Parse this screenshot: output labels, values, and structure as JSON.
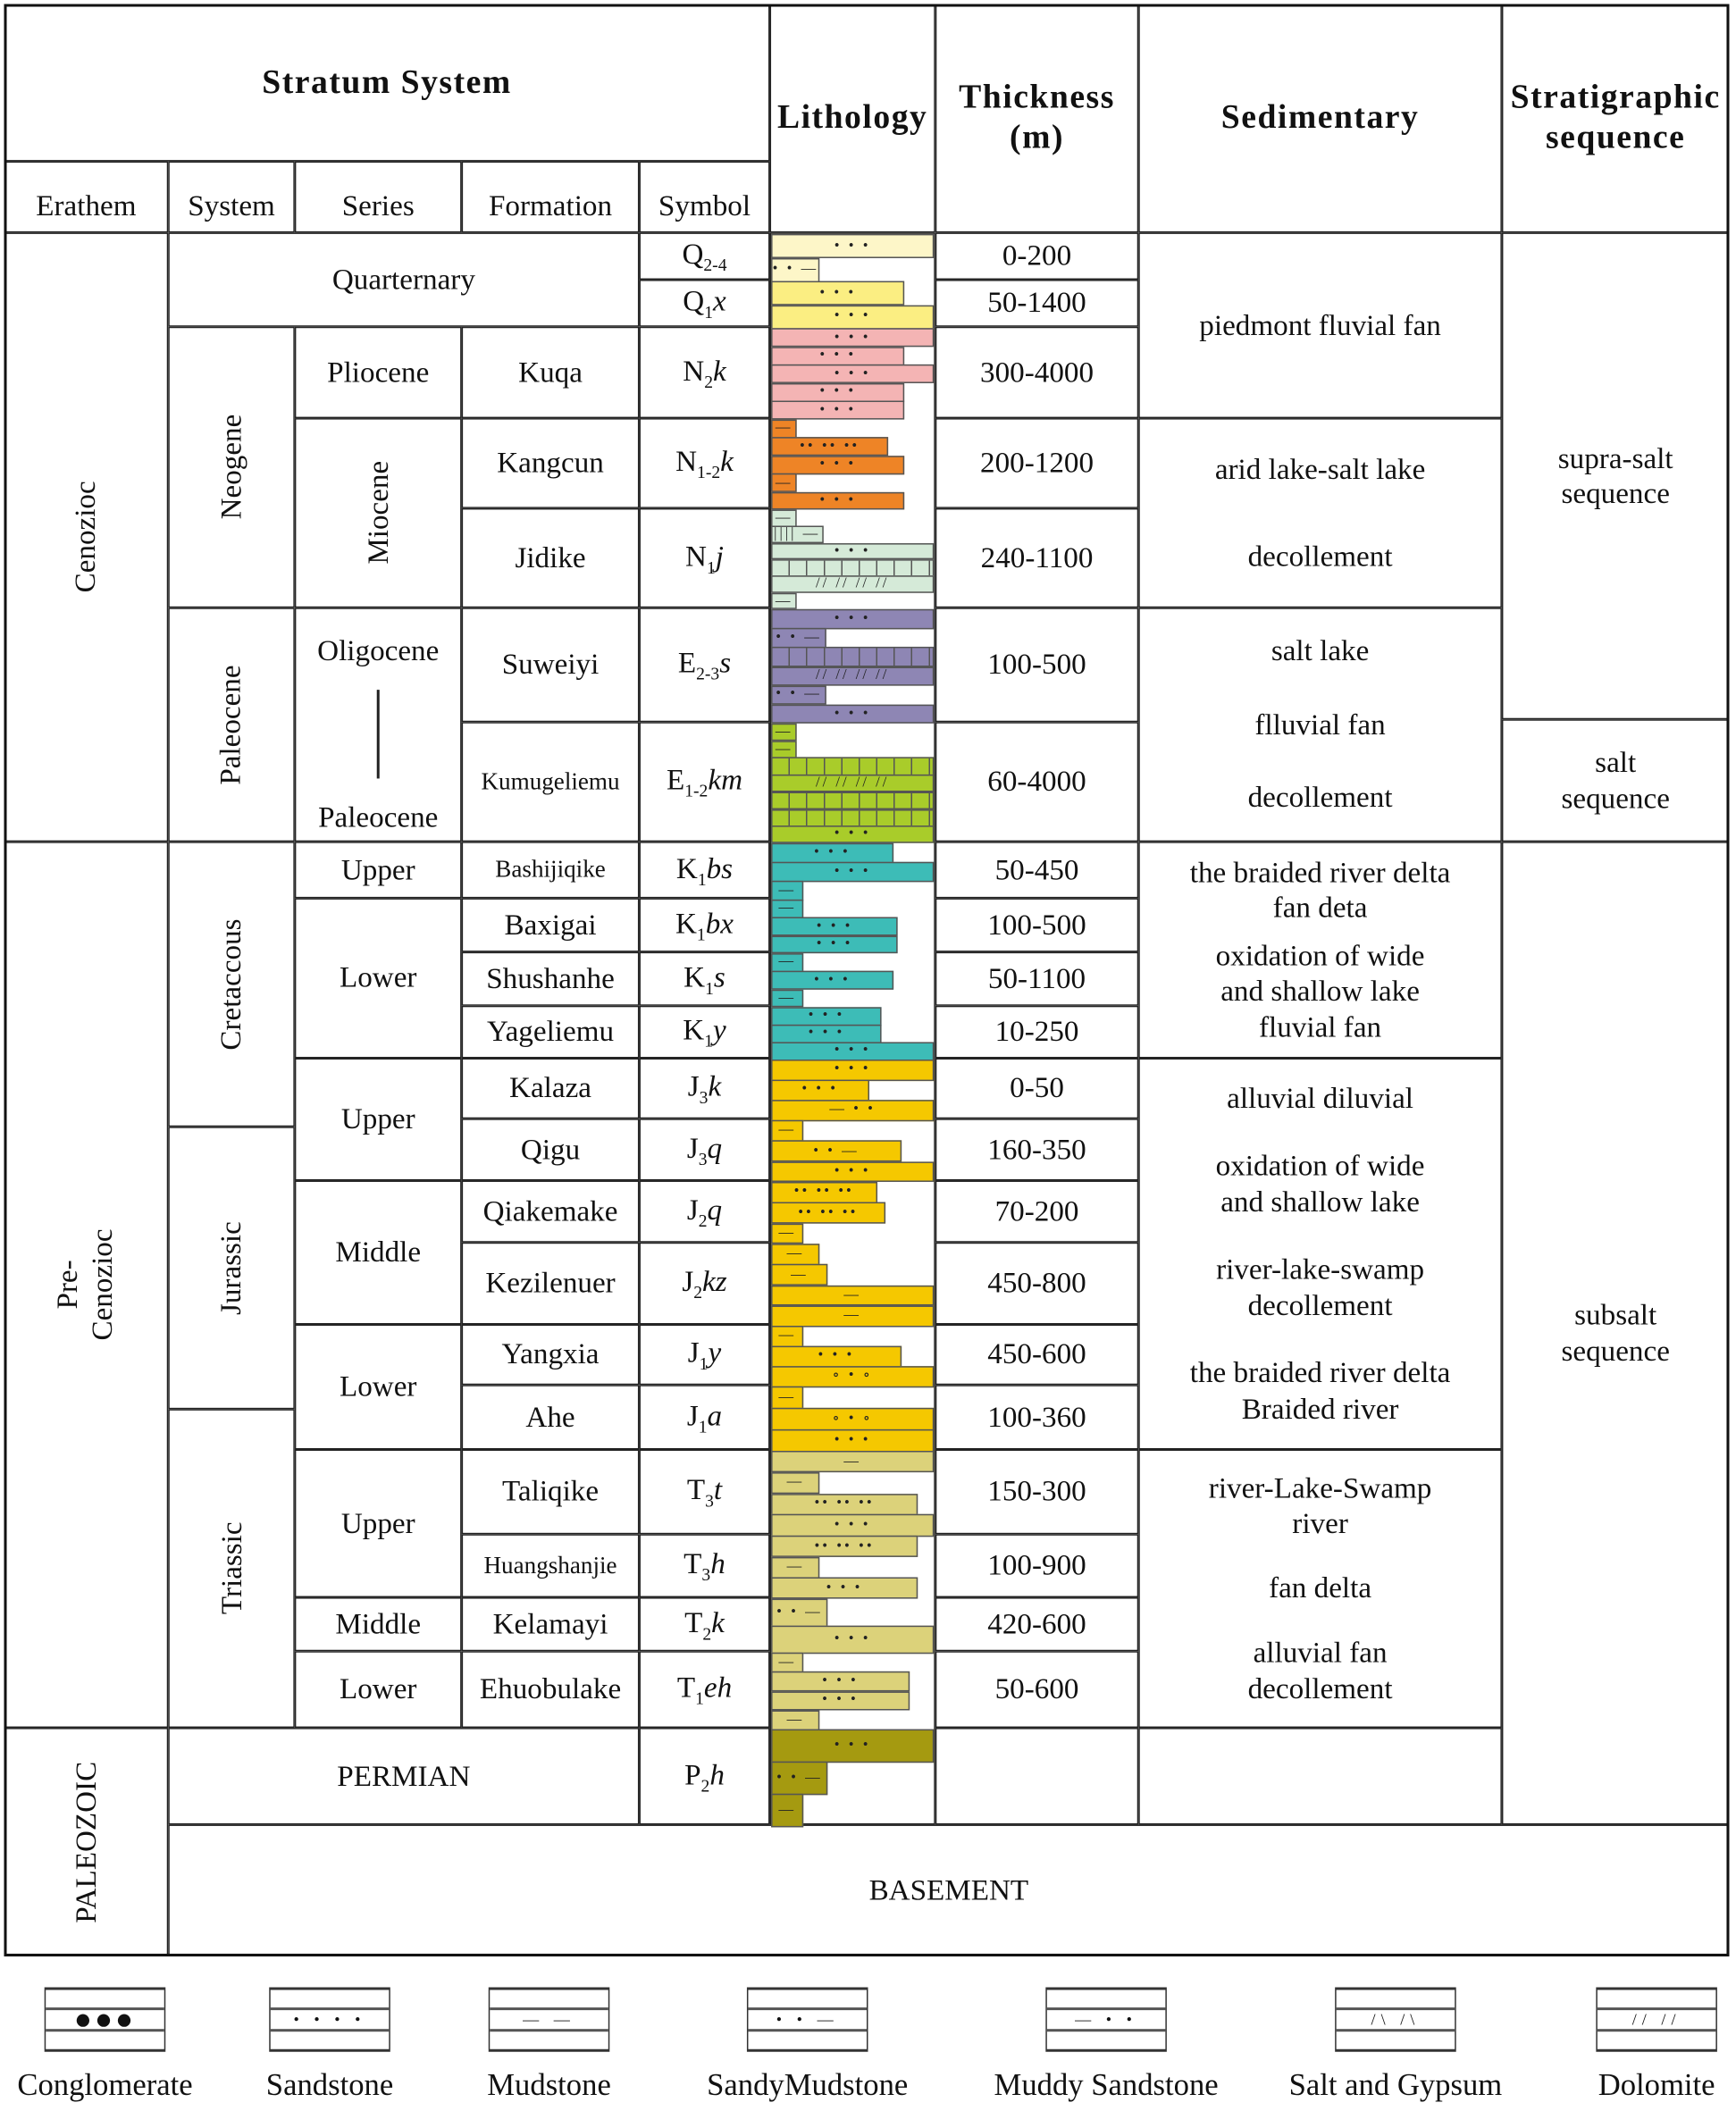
{
  "header": {
    "stratum_system": "Stratum System",
    "lithology": "Lithology",
    "thickness": "Thickness\n(m)",
    "sedimentary": "Sedimentary",
    "sequence": "Stratigraphic\nsequence",
    "erathem": "Erathem",
    "system": "System",
    "series": "Series",
    "formation": "Formation",
    "symbol": "Symbol"
  },
  "erathems": [
    "Cenozioc",
    "Pre-\nCenozioc",
    "PALEOZOIC"
  ],
  "systems": {
    "quarternary": "Quarternary",
    "neogene": "Neogene",
    "paleocene": "Paleocene",
    "cretaceous": "Cretaccous",
    "jurassic": "Jurassic",
    "triassic": "Triassic",
    "permian": "PERMIAN",
    "basement": "BASEMENT"
  },
  "series": {
    "pliocene": "Pliocene",
    "miocene": "Miocene",
    "oligocene": "Oligocene",
    "paleocene": "Paleocene",
    "k_upper": "Upper",
    "k_lower": "Lower",
    "j_upper": "Upper",
    "j_middle": "Middle",
    "j_lower": "Lower",
    "t_upper": "Upper",
    "t_middle": "Middle",
    "t_lower": "Lower"
  },
  "units": [
    {
      "formation": "",
      "symbol": {
        "b": "Q",
        "s": "2-4",
        "t": ""
      },
      "thickness": "0-200",
      "color": "#fdf6c8"
    },
    {
      "formation": "",
      "symbol": {
        "b": "Q",
        "s": "1",
        "t": "x"
      },
      "thickness": "50-1400",
      "color": "#fbee82"
    },
    {
      "formation": "Kuqa",
      "symbol": {
        "b": "N",
        "s": "2",
        "t": "k"
      },
      "thickness": "300-4000",
      "color": "#f4b4b4"
    },
    {
      "formation": "Kangcun",
      "symbol": {
        "b": "N",
        "s": "1-2",
        "t": "k"
      },
      "thickness": "200-1200",
      "color": "#ee8426"
    },
    {
      "formation": "Jidike",
      "symbol": {
        "b": "N",
        "s": "1",
        "t": "j"
      },
      "thickness": "240-1100",
      "color": "#d5ead8"
    },
    {
      "formation": "Suweiyi",
      "symbol": {
        "b": "E",
        "s": "2-3",
        "t": "s"
      },
      "thickness": "100-500",
      "color": "#8e86b4"
    },
    {
      "formation": "Kumugeliemu",
      "symbol": {
        "b": "E",
        "s": "1-2",
        "t": "km"
      },
      "thickness": "60-4000",
      "color": "#a9cc2a"
    },
    {
      "formation": "Bashijiqike",
      "symbol": {
        "b": "K",
        "s": "1",
        "t": "bs"
      },
      "thickness": "50-450",
      "color": "#3dbcb7"
    },
    {
      "formation": "Baxigai",
      "symbol": {
        "b": "K",
        "s": "1",
        "t": "bx"
      },
      "thickness": "100-500",
      "color": "#3dbcb7"
    },
    {
      "formation": "Shushanhe",
      "symbol": {
        "b": "K",
        "s": "1",
        "t": "s"
      },
      "thickness": "50-1100",
      "color": "#3dbcb7"
    },
    {
      "formation": "Yageliemu",
      "symbol": {
        "b": "K",
        "s": "1",
        "t": "y"
      },
      "thickness": "10-250",
      "color": "#3dbcb7"
    },
    {
      "formation": "Kalaza",
      "symbol": {
        "b": "J",
        "s": "3",
        "t": "k"
      },
      "thickness": "0-50",
      "color": "#f5c800"
    },
    {
      "formation": "Qigu",
      "symbol": {
        "b": "J",
        "s": "3",
        "t": "q"
      },
      "thickness": "160-350",
      "color": "#f5c800"
    },
    {
      "formation": "Qiakemake",
      "symbol": {
        "b": "J",
        "s": "2",
        "t": "q"
      },
      "thickness": "70-200",
      "color": "#f5c800"
    },
    {
      "formation": "Kezilenuer",
      "symbol": {
        "b": "J",
        "s": "2",
        "t": "kz"
      },
      "thickness": "450-800",
      "color": "#f5c800"
    },
    {
      "formation": "Yangxia",
      "symbol": {
        "b": "J",
        "s": "1",
        "t": "y"
      },
      "thickness": "450-600",
      "color": "#f5c800"
    },
    {
      "formation": "Ahe",
      "symbol": {
        "b": "J",
        "s": "1",
        "t": "a"
      },
      "thickness": "100-360",
      "color": "#f5c800"
    },
    {
      "formation": "Taliqike",
      "symbol": {
        "b": "T",
        "s": "3",
        "t": "t"
      },
      "thickness": "150-300",
      "color": "#dcd27a"
    },
    {
      "formation": "Huangshanjie",
      "symbol": {
        "b": "T",
        "s": "3",
        "t": "h"
      },
      "thickness": "100-900",
      "color": "#dcd27a"
    },
    {
      "formation": "Kelamayi",
      "symbol": {
        "b": "T",
        "s": "2",
        "t": "k"
      },
      "thickness": "420-600",
      "color": "#dcd27a"
    },
    {
      "formation": "Ehuobulake",
      "symbol": {
        "b": "T",
        "s": "1",
        "t": "eh"
      },
      "thickness": "50-600",
      "color": "#dcd27a"
    },
    {
      "formation": "",
      "symbol": {
        "b": "P",
        "s": "2",
        "t": "h"
      },
      "thickness": "",
      "color": "#a59a10"
    }
  ],
  "sedimentary": [
    {
      "lines": [
        "piedmont fluvial fan"
      ]
    },
    {
      "lines": [
        "arid lake-salt lake",
        "decollement"
      ]
    },
    {
      "lines": [
        "salt lake",
        "flluvial fan",
        "decollement"
      ]
    },
    {
      "lines": [
        "the braided river delta\nfan deta",
        "oxidation of wide\nand shallow lake\nfluvial fan"
      ]
    },
    {
      "lines": [
        "alluvial diluvial",
        "oxidation of wide\nand shallow lake",
        "river-lake-swamp\ndecollement",
        "the braided river delta\nBraided river"
      ]
    },
    {
      "lines": [
        "river-Lake-Swamp\nriver",
        "fan delta",
        "alluvial fan\ndecollement"
      ]
    },
    {
      "lines": []
    }
  ],
  "sequences": [
    "supra-salt\nsequence",
    "salt\nsequence",
    "subsalt\nsequence"
  ],
  "legend": [
    {
      "label": "Conglomerate",
      "pattern": "conglomerate"
    },
    {
      "label": "Sandstone",
      "pattern": "sandstone"
    },
    {
      "label": "Mudstone",
      "pattern": "mudstone"
    },
    {
      "label": "SandyMudstone",
      "pattern": "sandy-mudstone"
    },
    {
      "label": "Muddy Sandstone",
      "pattern": "muddy-sandstone"
    },
    {
      "label": "Salt and Gypsum",
      "pattern": "salt-gypsum"
    },
    {
      "label": "Dolomite",
      "pattern": "dolomite"
    }
  ]
}
